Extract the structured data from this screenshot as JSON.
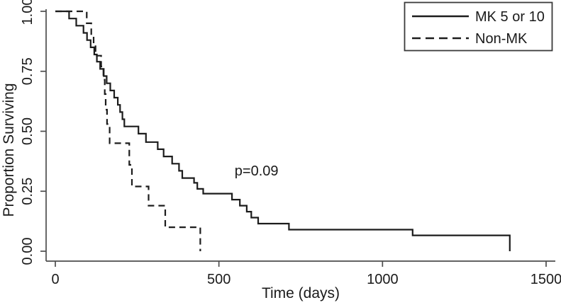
{
  "chart_data": {
    "type": "line",
    "subtype": "kaplan-meier-step",
    "title": "",
    "xlabel": "Time (days)",
    "ylabel": "Proportion Surviving",
    "xlim": [
      0,
      1528
    ],
    "ylim": [
      0,
      1
    ],
    "grid": false,
    "legend_position": "top-right",
    "x_ticks": [
      {
        "value": 0,
        "label": "0"
      },
      {
        "value": 500,
        "label": "500"
      },
      {
        "value": 1000,
        "label": "1000"
      },
      {
        "value": 1500,
        "label": "1500"
      }
    ],
    "y_ticks": [
      {
        "value": 0.0,
        "label": "0.00"
      },
      {
        "value": 0.25,
        "label": "0.25"
      },
      {
        "value": 0.5,
        "label": "0.50"
      },
      {
        "value": 0.75,
        "label": "0.75"
      },
      {
        "value": 1.0,
        "label": "1.00"
      }
    ],
    "annotation": {
      "text": "p=0.09",
      "time": 548,
      "value": 0.315
    },
    "series": [
      {
        "name": "MK 5 or 10",
        "line": "solid",
        "points": [
          [
            0,
            1.0
          ],
          [
            42,
            0.97
          ],
          [
            64,
            0.94
          ],
          [
            86,
            0.91
          ],
          [
            97,
            0.88
          ],
          [
            108,
            0.85
          ],
          [
            119,
            0.82
          ],
          [
            127,
            0.79
          ],
          [
            137,
            0.76
          ],
          [
            148,
            0.73
          ],
          [
            157,
            0.7
          ],
          [
            168,
            0.67
          ],
          [
            180,
            0.64
          ],
          [
            191,
            0.61
          ],
          [
            198,
            0.58
          ],
          [
            205,
            0.55
          ],
          [
            211,
            0.52
          ],
          [
            254,
            0.49
          ],
          [
            277,
            0.455
          ],
          [
            313,
            0.425
          ],
          [
            331,
            0.395
          ],
          [
            357,
            0.365
          ],
          [
            378,
            0.335
          ],
          [
            388,
            0.305
          ],
          [
            424,
            0.285
          ],
          [
            434,
            0.26
          ],
          [
            452,
            0.24
          ],
          [
            540,
            0.215
          ],
          [
            564,
            0.19
          ],
          [
            585,
            0.165
          ],
          [
            599,
            0.14
          ],
          [
            620,
            0.115
          ],
          [
            714,
            0.09
          ],
          [
            1092,
            0.066
          ],
          [
            1389,
            0.0
          ]
        ]
      },
      {
        "name": "Non-MK",
        "line": "dashed",
        "points": [
          [
            0,
            1.0
          ],
          [
            96,
            0.95
          ],
          [
            110,
            0.905
          ],
          [
            117,
            0.86
          ],
          [
            123,
            0.815
          ],
          [
            140,
            0.77
          ],
          [
            147,
            0.715
          ],
          [
            151,
            0.655
          ],
          [
            154,
            0.59
          ],
          [
            158,
            0.53
          ],
          [
            166,
            0.45
          ],
          [
            226,
            0.36
          ],
          [
            234,
            0.27
          ],
          [
            285,
            0.19
          ],
          [
            336,
            0.1
          ],
          [
            443,
            0.0
          ]
        ]
      }
    ],
    "colors": {
      "curve": "#1c1c1c",
      "axis": "#4d4d4d",
      "text": "#1a1a1a",
      "background": "#ffffff"
    }
  }
}
